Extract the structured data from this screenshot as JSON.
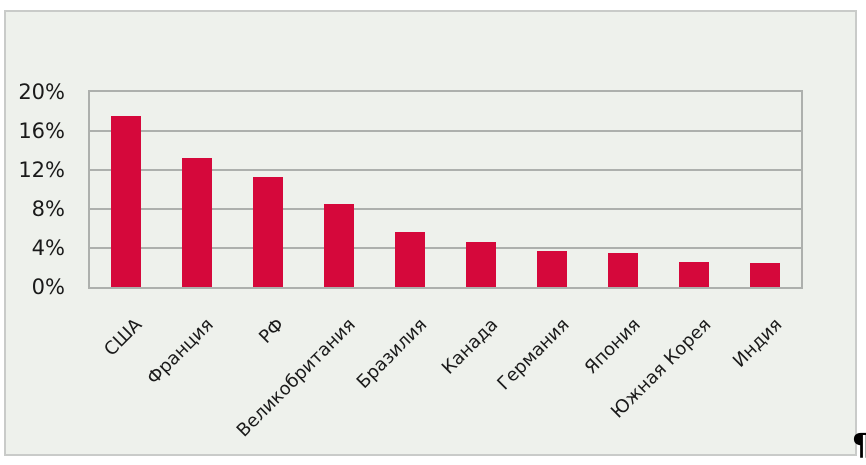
{
  "page": {
    "paragraph_mark": "¶"
  },
  "chart_data": {
    "type": "bar",
    "title": "",
    "xlabel": "",
    "ylabel": "",
    "categories": [
      "США",
      "Франция",
      "РФ",
      "Великобритания",
      "Бразилия",
      "Канада",
      "Германия",
      "Япония",
      "Южная Корея",
      "Индия"
    ],
    "values": [
      17.5,
      13.2,
      11.3,
      8.5,
      5.6,
      4.6,
      3.7,
      3.5,
      2.6,
      2.5
    ],
    "y_ticks": [
      {
        "value": 0,
        "label": "0%"
      },
      {
        "value": 4,
        "label": "4%"
      },
      {
        "value": 8,
        "label": "8%"
      },
      {
        "value": 12,
        "label": "12%"
      },
      {
        "value": 16,
        "label": "16%"
      },
      {
        "value": 20,
        "label": "20%"
      }
    ],
    "ylim": [
      0,
      20
    ],
    "grid": true,
    "legend": "none",
    "colors": {
      "bar": "#d5083b",
      "chart_background": "#eef1ec",
      "plot_line": "#adb0ad",
      "frame_border": "#c9cbc9",
      "text": "#1a1a1a"
    }
  }
}
